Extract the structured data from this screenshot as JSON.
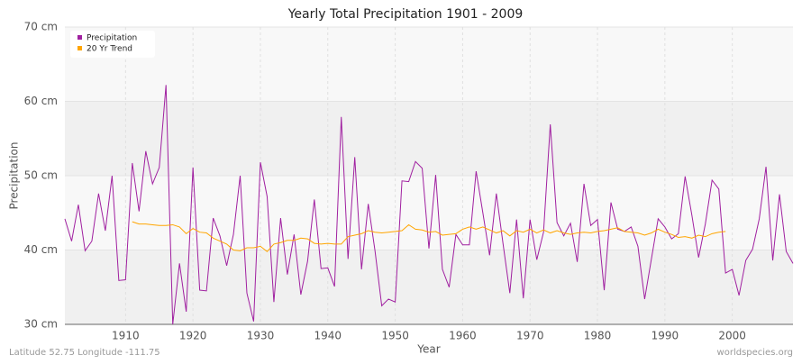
{
  "chart_data": {
    "type": "line",
    "title": "Yearly Total Precipitation 1901 - 2009",
    "x_label": "Year",
    "y_label": "Precipitation",
    "footer_left": "Latitude 52.75 Longitude -111.75",
    "footer_right": "worldspecies.org",
    "legend": "top-left",
    "grid": true,
    "x": [
      1901,
      1902,
      1903,
      1904,
      1905,
      1906,
      1907,
      1908,
      1909,
      1910,
      1911,
      1912,
      1913,
      1914,
      1915,
      1916,
      1917,
      1918,
      1919,
      1920,
      1921,
      1922,
      1923,
      1924,
      1925,
      1926,
      1927,
      1928,
      1929,
      1930,
      1931,
      1932,
      1933,
      1934,
      1935,
      1936,
      1937,
      1938,
      1939,
      1940,
      1941,
      1942,
      1943,
      1944,
      1945,
      1946,
      1947,
      1948,
      1949,
      1950,
      1951,
      1952,
      1953,
      1954,
      1955,
      1956,
      1957,
      1958,
      1959,
      1960,
      1961,
      1962,
      1963,
      1964,
      1965,
      1966,
      1967,
      1968,
      1969,
      1970,
      1971,
      1972,
      1973,
      1974,
      1975,
      1976,
      1977,
      1978,
      1979,
      1980,
      1981,
      1982,
      1983,
      1984,
      1985,
      1986,
      1987,
      1988,
      1989,
      1990,
      1991,
      1992,
      1993,
      1994,
      1995,
      1996,
      1997,
      1998,
      1999,
      2000,
      2001,
      2002,
      2003,
      2004,
      2005,
      2006,
      2007,
      2008,
      2009
    ],
    "series": [
      {
        "name": "Precipitation",
        "color": "#a020a0",
        "values": [
          44.2,
          41.2,
          46.1,
          39.9,
          41.2,
          47.6,
          42.6,
          50.0,
          35.9,
          36.0,
          51.7,
          45.2,
          53.3,
          48.9,
          51.1,
          62.2,
          30.0,
          38.2,
          31.7,
          51.1,
          34.6,
          34.5,
          44.3,
          41.9,
          37.9,
          42.1,
          50.0,
          34.2,
          30.4,
          51.8,
          47.2,
          33.0,
          44.3,
          36.7,
          42.1,
          34.0,
          38.5,
          46.8,
          37.5,
          37.6,
          35.1,
          57.9,
          38.8,
          52.5,
          37.4,
          46.2,
          39.9,
          32.5,
          33.4,
          33.0,
          49.3,
          49.2,
          51.9,
          51.0,
          40.2,
          50.1,
          37.4,
          35.0,
          42.1,
          40.7,
          40.7,
          50.6,
          45.0,
          39.3,
          47.6,
          40.8,
          34.2,
          44.1,
          33.5,
          44.1,
          38.7,
          42.4,
          56.9,
          43.7,
          41.9,
          43.6,
          38.4,
          48.9,
          43.3,
          44.1,
          34.6,
          46.4,
          42.8,
          42.5,
          43.1,
          40.5,
          33.4,
          38.8,
          44.2,
          43.1,
          41.5,
          42.2,
          49.9,
          44.7,
          39.0,
          43.5,
          49.4,
          48.2,
          36.9,
          37.4,
          33.9,
          38.6,
          40.1,
          44.2,
          51.2,
          38.6,
          47.5,
          39.8,
          38.2
        ]
      },
      {
        "name": "20 Yr Trend",
        "color": "#ffa500",
        "values": [
          null,
          null,
          null,
          null,
          null,
          null,
          null,
          null,
          null,
          null,
          43.8,
          43.5,
          43.5,
          43.4,
          43.3,
          43.3,
          43.4,
          43.1,
          42.2,
          42.9,
          42.4,
          42.3,
          41.6,
          41.2,
          40.8,
          40.0,
          39.9,
          40.3,
          40.3,
          40.5,
          39.8,
          40.8,
          41.0,
          41.3,
          41.3,
          41.6,
          41.5,
          40.9,
          40.8,
          40.9,
          40.8,
          40.8,
          41.8,
          42.0,
          42.2,
          42.6,
          42.4,
          42.3,
          42.4,
          42.5,
          42.6,
          43.4,
          42.8,
          42.7,
          42.4,
          42.5,
          42.0,
          42.1,
          42.2,
          42.8,
          43.1,
          42.8,
          43.1,
          42.7,
          42.3,
          42.6,
          41.9,
          42.6,
          42.4,
          42.8,
          42.3,
          42.7,
          42.3,
          42.6,
          42.3,
          42.1,
          42.3,
          42.4,
          42.3,
          42.5,
          42.6,
          42.8,
          43.0,
          42.5,
          42.4,
          42.3,
          42.0,
          42.3,
          42.8,
          42.4,
          42.1,
          41.7,
          41.8,
          41.6,
          42.0,
          41.8,
          42.2,
          42.4,
          42.5,
          null,
          null,
          null,
          null,
          null,
          null,
          null,
          null,
          null,
          null
        ]
      }
    ],
    "xlim": [
      1901,
      2009
    ],
    "xticks": [
      1910,
      1920,
      1930,
      1940,
      1950,
      1960,
      1970,
      1980,
      1990,
      2000
    ],
    "ylim": [
      30,
      70
    ],
    "yticks": [
      {
        "value": 30,
        "label": "30 cm"
      },
      {
        "value": 40,
        "label": "40 cm"
      },
      {
        "value": 50,
        "label": "50 cm"
      },
      {
        "value": 60,
        "label": "60 cm"
      },
      {
        "value": 70,
        "label": "70 cm"
      }
    ]
  }
}
